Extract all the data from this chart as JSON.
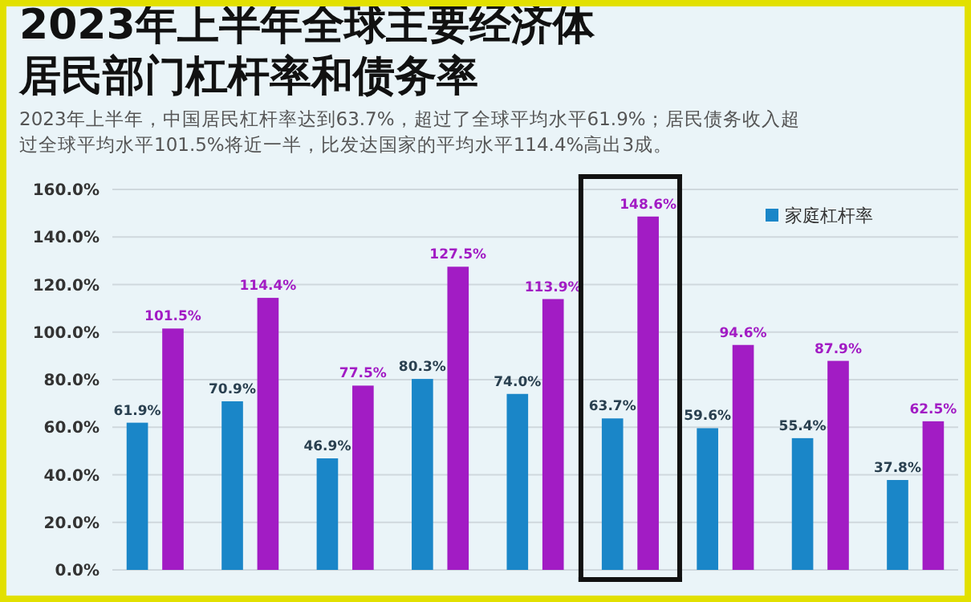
{
  "chart_data": {
    "type": "bar",
    "title": "2023年上半年全球主要经济体居民部门杠杆率和债务率",
    "subtitle": "2023年上半年，中国居民杠杆率达到63.7%，超过了全球平均水平61.9%；居民债务收入超过全球平均水平101.5%将近一半，比发达国家的平均水平114.4%高出3成。",
    "categories": [
      null,
      null,
      null,
      null,
      null,
      null,
      null,
      null,
      null
    ],
    "series": [
      {
        "name": "家庭杠杆率",
        "color": "#1a86c8",
        "values": [
          61.9,
          70.9,
          46.9,
          80.3,
          74.0,
          63.7,
          59.6,
          55.4,
          37.8
        ],
        "value_labels": [
          "61.9%",
          "70.9%",
          "46.9%",
          "80.3%",
          "74.0%",
          "63.7%",
          "59.6%",
          "55.4%",
          "37.8%"
        ]
      },
      {
        "color": "#a21cc4",
        "values": [
          101.5,
          114.4,
          77.5,
          127.5,
          113.9,
          148.6,
          94.6,
          87.9,
          62.5
        ],
        "value_labels": [
          "101.5%",
          "114.4%",
          "77.5%",
          "127.5%",
          "113.9%",
          "148.6%",
          "94.6%",
          "87.9%",
          "62.5%"
        ]
      }
    ],
    "ylim": [
      0,
      160
    ],
    "yticks": [
      {
        "value": 0,
        "label": "0.0%"
      },
      {
        "value": 20,
        "label": "20.0%"
      },
      {
        "value": 40,
        "label": "40.0%"
      },
      {
        "value": 60,
        "label": "60.0%"
      },
      {
        "value": 80,
        "label": "80.0%"
      },
      {
        "value": 100,
        "label": "100.0%"
      },
      {
        "value": 120,
        "label": "120.0%"
      },
      {
        "value": 140,
        "label": "140.0%"
      },
      {
        "value": 160,
        "label": "160.0%"
      }
    ],
    "grid": "y",
    "legend": "top right"
  }
}
